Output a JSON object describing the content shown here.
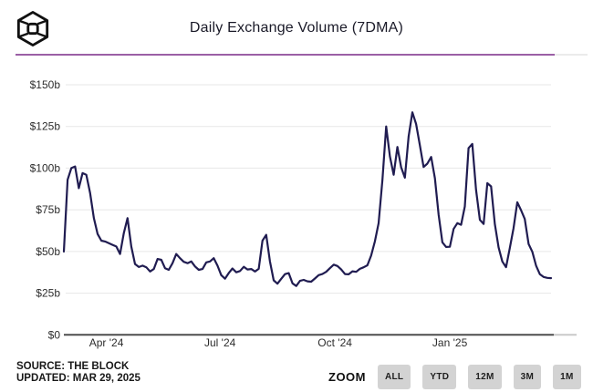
{
  "header": {
    "title": "Daily Exchange Volume (7DMA)",
    "logo": "the-block-cube-logo"
  },
  "colors": {
    "accent_rule": "#9b5fa5",
    "line": "#201c51",
    "grid": "#e7e7e7",
    "axis": "#4d4d4d",
    "button_bg": "#d3d3d3"
  },
  "chart_data": {
    "type": "line",
    "title": "Daily Exchange Volume (7DMA)",
    "xlabel": "",
    "ylabel": "",
    "unit": "USD billions per day",
    "ylim": [
      0,
      150
    ],
    "grid": "horizontal",
    "legend": "none",
    "y_ticks": [
      {
        "label": "$150b",
        "value": 150
      },
      {
        "label": "$125b",
        "value": 125
      },
      {
        "label": "$100b",
        "value": 100
      },
      {
        "label": "$75b",
        "value": 75
      },
      {
        "label": "$50b",
        "value": 50
      },
      {
        "label": "$25b",
        "value": 25
      },
      {
        "label": "$0",
        "value": 0
      }
    ],
    "x_ticks": [
      {
        "label": "Apr '24",
        "day": 34
      },
      {
        "label": "Jul '24",
        "day": 125
      },
      {
        "label": "Oct '24",
        "day": 217
      },
      {
        "label": "Jan '25",
        "day": 309
      }
    ],
    "series": [
      {
        "name": "Daily Exchange Volume (7DMA)",
        "start_date": "2024-02-27",
        "interval_days": 3,
        "values": [
          50,
          93,
          100,
          101,
          88,
          97,
          96,
          85,
          70,
          60.5,
          56.5,
          56,
          55,
          54,
          53,
          48.5,
          61,
          70,
          53,
          42.5,
          40.7,
          41.5,
          40.5,
          38,
          39.5,
          45.5,
          45,
          40,
          39,
          43,
          48.5,
          46,
          43.8,
          43,
          44,
          41,
          39,
          39.5,
          43.5,
          44,
          46,
          41.5,
          35.8,
          33.7,
          37,
          39.8,
          37.5,
          38.3,
          40.8,
          39.2,
          39.5,
          38,
          39.6,
          56.5,
          60,
          44,
          32.7,
          30.7,
          33.6,
          36.4,
          37,
          30.9,
          29.3,
          32.4,
          33,
          32.1,
          31.9,
          33.8,
          35.8,
          36.5,
          37.8,
          40,
          42.1,
          41.3,
          39.2,
          36.5,
          36.3,
          38.1,
          37.8,
          39.6,
          40.5,
          41.7,
          47.5,
          56,
          67,
          93,
          125,
          107,
          96,
          112.7,
          100.5,
          94.3,
          119,
          133.5,
          126.5,
          113.8,
          100.7,
          102.7,
          106.7,
          94,
          72,
          55.5,
          52.7,
          52.8,
          63.5,
          67,
          66,
          77,
          112,
          114.5,
          87,
          69,
          66.5,
          91,
          89,
          66.5,
          52.5,
          44,
          40.6,
          52,
          64,
          79.5,
          74.8,
          69.5,
          54.5,
          49.8,
          41.5,
          36.4,
          34.7,
          34.2,
          34
        ]
      }
    ]
  },
  "footer": {
    "source": "SOURCE: THE BLOCK",
    "updated": "UPDATED: MAR 29, 2025",
    "zoom_label": "ZOOM",
    "zoom_buttons": [
      "ALL",
      "YTD",
      "12M",
      "3M",
      "1M"
    ]
  }
}
